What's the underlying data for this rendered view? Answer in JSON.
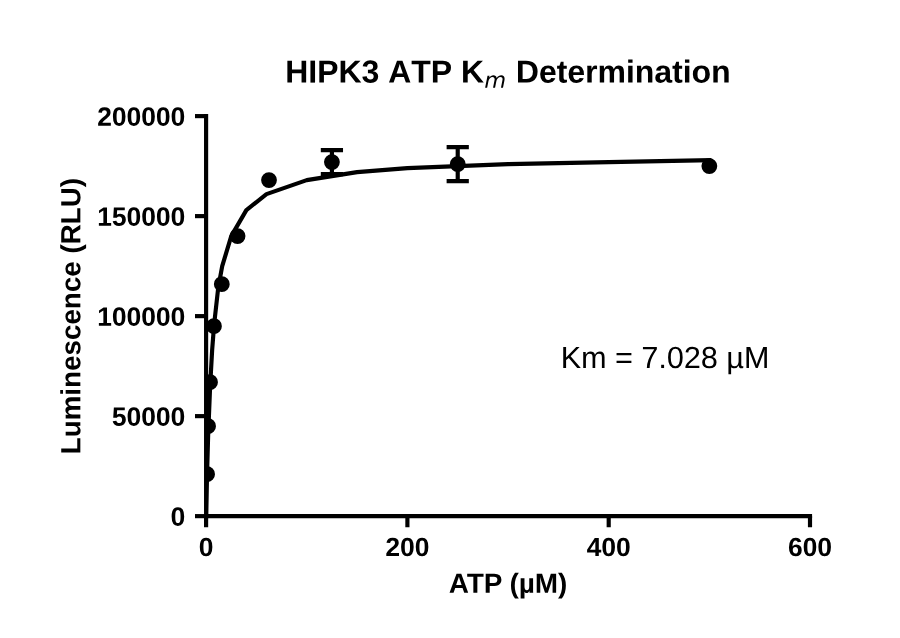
{
  "chart_data": {
    "type": "scatter",
    "title": "HIPK3 ATP K$_{m}$ Determination",
    "xlabel": "ATP (µM)",
    "ylabel": "Luminescence (RLU)",
    "annotations": [
      "Km = 7.028 µM"
    ],
    "series": [
      {
        "color": "#000000",
        "marker": "circle",
        "x": [
          0.98,
          1.95,
          3.9,
          7.8,
          15.6,
          31.25,
          62.5,
          125,
          250,
          500
        ],
        "values": [
          21000,
          45000,
          67000,
          95000,
          116000,
          140000,
          168000,
          177000,
          176000,
          175000
        ],
        "errors": [
          null,
          null,
          null,
          null,
          null,
          null,
          null,
          6000,
          8500,
          null
        ]
      },
      {
        "type": "line",
        "color": "#000000",
        "x": [
          0,
          1,
          2,
          4,
          6,
          8,
          12,
          16,
          25,
          40,
          60,
          100,
          150,
          200,
          300,
          400,
          500
        ],
        "values": [
          0,
          22000,
          40000,
          65000,
          83000,
          96000,
          114000,
          125000,
          140000,
          153000,
          161000,
          168000,
          172000,
          174000,
          176000,
          177000,
          178000
        ]
      }
    ],
    "xlim": [
      0,
      600
    ],
    "xticks": [
      0,
      200,
      400,
      600
    ],
    "ylim": [
      0,
      200000
    ],
    "yticks": [
      0,
      50000,
      100000,
      150000,
      200000
    ],
    "grid": false
  }
}
